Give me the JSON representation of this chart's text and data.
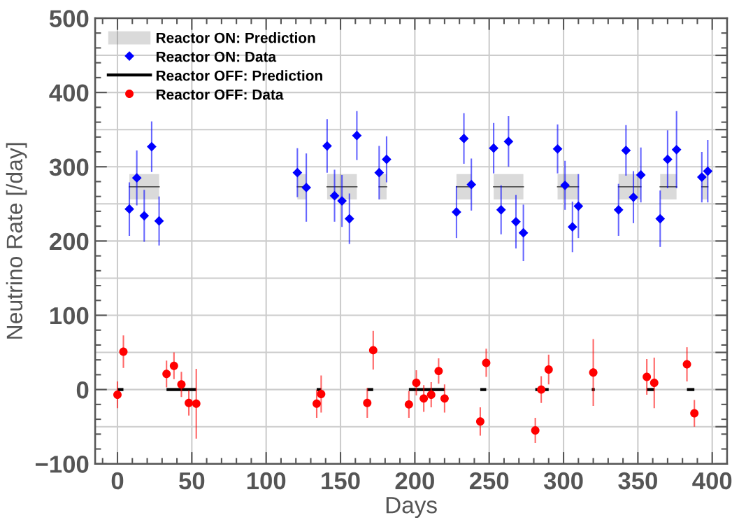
{
  "chart_data": {
    "type": "scatter",
    "xlabel": "Days",
    "ylabel": "Neutrino Rate [/day]",
    "xlim": [
      -15,
      410
    ],
    "ylim": [
      -100,
      500
    ],
    "xticks": [
      0,
      50,
      100,
      150,
      200,
      250,
      300,
      350,
      400
    ],
    "yticks": [
      {
        "value": -100,
        "label": "−100"
      },
      {
        "value": -50,
        "label": null
      },
      0,
      {
        "value": 50,
        "label": null
      },
      100,
      {
        "value": 150,
        "label": null
      },
      200,
      {
        "value": 250,
        "label": null
      },
      300,
      {
        "value": 350,
        "label": null
      },
      400,
      {
        "value": 450,
        "label": null
      },
      500
    ],
    "grid": true,
    "legend": "top left",
    "series": [
      {
        "name": "Reactor ON: Prediction",
        "type": "line",
        "color": "#555555",
        "x": [
          8,
          28,
          null,
          121,
          127,
          null,
          141,
          161,
          null,
          176,
          181,
          null,
          228,
          238,
          null,
          253,
          273,
          null,
          296,
          310,
          null,
          337,
          352,
          null,
          365,
          376,
          null,
          393,
          397
        ],
        "values": [
          273,
          273,
          null,
          273,
          273,
          null,
          273,
          273,
          null,
          273,
          273,
          null,
          273,
          273,
          null,
          273,
          273,
          null,
          273,
          273,
          null,
          273,
          273,
          null,
          273,
          273,
          null,
          273,
          273
        ],
        "lower": [
          256,
          256,
          null,
          256,
          256,
          null,
          256,
          256,
          null,
          256,
          256,
          null,
          256,
          256,
          null,
          256,
          256,
          null,
          256,
          256,
          null,
          256,
          256,
          null,
          256,
          256,
          null,
          256,
          256
        ],
        "upper": [
          290,
          290,
          null,
          290,
          290,
          null,
          290,
          290,
          null,
          290,
          290,
          null,
          290,
          290,
          null,
          290,
          290,
          null,
          290,
          290,
          null,
          290,
          290,
          null,
          290,
          290,
          null,
          290,
          290
        ]
      },
      {
        "name": "Reactor ON: Data",
        "marker": "diamond",
        "color": "#0000ff",
        "x": [
          8,
          13,
          18,
          23,
          28,
          121,
          127,
          141,
          146,
          151,
          156,
          161,
          176,
          181,
          228,
          233,
          238,
          253,
          258,
          263,
          268,
          273,
          296,
          301,
          306,
          310,
          337,
          342,
          347,
          352,
          365,
          370,
          376,
          393,
          397
        ],
        "values": [
          243,
          285,
          234,
          327,
          227,
          292,
          272,
          328,
          261,
          254,
          230,
          342,
          292,
          310,
          239,
          338,
          276,
          325,
          242,
          334,
          226,
          211,
          324,
          275,
          219,
          247,
          242,
          322,
          259,
          289,
          230,
          310,
          323,
          286,
          294
        ],
        "errors": [
          36,
          37,
          35,
          34,
          33,
          33,
          46,
          36,
          35,
          35,
          34,
          33,
          36,
          31,
          35,
          34,
          35,
          34,
          33,
          34,
          36,
          38,
          33,
          33,
          34,
          43,
          35,
          34,
          35,
          37,
          38,
          39,
          52,
          34,
          42
        ]
      },
      {
        "name": "Reactor OFF: Prediction",
        "type": "line",
        "color": "#000000",
        "x": [
          0,
          4,
          null,
          33,
          53,
          null,
          134,
          137,
          null,
          168,
          172,
          null,
          196,
          220,
          null,
          244,
          248,
          null,
          281,
          290,
          null,
          319,
          321,
          null,
          356,
          361,
          null,
          383,
          388
        ],
        "values": [
          0,
          0,
          null,
          0,
          0,
          null,
          0,
          0,
          null,
          0,
          0,
          null,
          0,
          0,
          null,
          0,
          0,
          null,
          0,
          0,
          null,
          0,
          0,
          null,
          0,
          0,
          null,
          0,
          0
        ]
      },
      {
        "name": "Reactor OFF: Data",
        "marker": "circle",
        "color": "#ff0000",
        "x": [
          0,
          4,
          33,
          38,
          43,
          48,
          53,
          134,
          137,
          168,
          172,
          196,
          201,
          206,
          211,
          216,
          220,
          244,
          248,
          281,
          285,
          290,
          320,
          356,
          361,
          383,
          388
        ],
        "values": [
          -7,
          51,
          21,
          32,
          7,
          -18,
          -19,
          -19,
          -6,
          -18,
          53,
          -20,
          9,
          -12,
          -7,
          25,
          -12,
          -43,
          36,
          -55,
          0,
          27,
          23,
          17,
          9,
          34,
          -32
        ],
        "errors": [
          18,
          22,
          18,
          18,
          17,
          17,
          47,
          19,
          25,
          20,
          26,
          18,
          17,
          18,
          17,
          17,
          19,
          19,
          19,
          17,
          18,
          20,
          45,
          24,
          34,
          23,
          18
        ]
      }
    ]
  }
}
